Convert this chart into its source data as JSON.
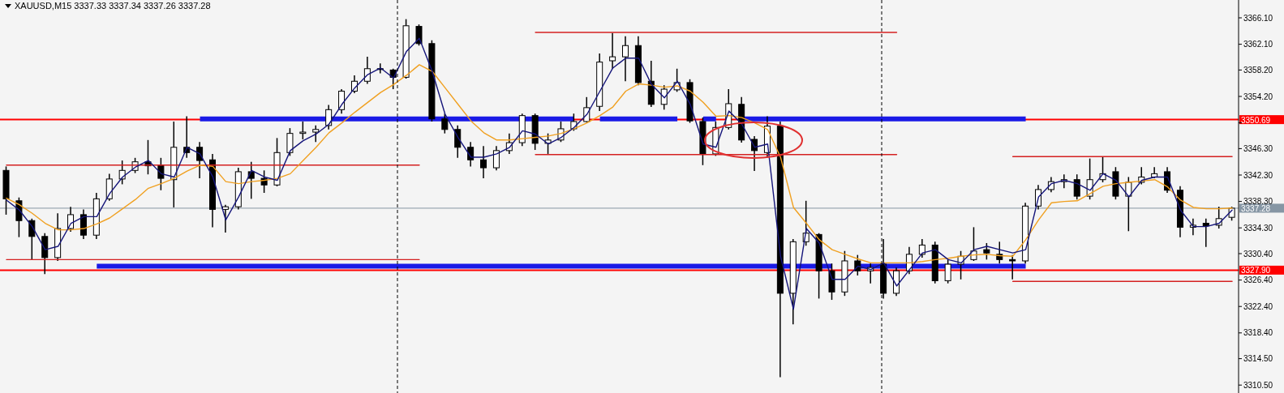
{
  "chart_data": {
    "type": "candlestick",
    "title": "XAUUSD,M15  3337.33 3337.34 3337.26 3337.28",
    "marker": "none",
    "color": "#000000",
    "categories": [
      null,
      null,
      null,
      null,
      null,
      null,
      null,
      null,
      null,
      null,
      null,
      null,
      null,
      null,
      null,
      null,
      null,
      null,
      null,
      null,
      null,
      null,
      null,
      null,
      null,
      null,
      null,
      null,
      null,
      null,
      null,
      null,
      null,
      null,
      null,
      null,
      null,
      null,
      null,
      null,
      null,
      null,
      null,
      null,
      null,
      null,
      null,
      null,
      null,
      null,
      null,
      null,
      null,
      null,
      null,
      null,
      null,
      null,
      null,
      null,
      null,
      null,
      null,
      null,
      null,
      null,
      null,
      null,
      null,
      null,
      null,
      null,
      null,
      null,
      null,
      null,
      null,
      null,
      null,
      null,
      null,
      null,
      null,
      null,
      null,
      null,
      null,
      null,
      null,
      null,
      null,
      null,
      null,
      null,
      null,
      null
    ],
    "ohlc": [
      [
        3343.0,
        3343.6,
        3336.3,
        3338.7
      ],
      [
        3338.4,
        3338.9,
        3332.9,
        3335.4
      ],
      [
        3335.4,
        3335.7,
        3329.5,
        3333.0
      ],
      [
        3333.0,
        3333.5,
        3327.3,
        3329.8
      ],
      [
        3329.8,
        3336.5,
        3329.3,
        3334.2
      ],
      [
        3334.2,
        3337.5,
        3333.7,
        3336.3
      ],
      [
        3336.3,
        3337.1,
        3332.6,
        3333.2
      ],
      [
        3333.2,
        3339.6,
        3332.6,
        3338.7
      ],
      [
        3338.7,
        3342.5,
        3338.4,
        3341.7
      ],
      [
        3341.7,
        3344.5,
        3340.9,
        3343.0
      ],
      [
        3343.0,
        3344.9,
        3342.6,
        3344.3
      ],
      [
        3344.3,
        3347.6,
        3342.4,
        3343.7
      ],
      [
        3343.7,
        3344.9,
        3340.0,
        3341.8
      ],
      [
        3341.6,
        3350.4,
        3337.4,
        3346.5
      ],
      [
        3346.5,
        3351.2,
        3344.9,
        3345.7
      ],
      [
        3346.5,
        3347.3,
        3341.8,
        3344.5
      ],
      [
        3344.6,
        3345.5,
        3334.4,
        3337.1
      ],
      [
        3337.1,
        3337.8,
        3333.6,
        3337.5
      ],
      [
        3337.5,
        3343.4,
        3337.1,
        3342.8
      ],
      [
        3342.8,
        3344.3,
        3338.7,
        3341.8
      ],
      [
        3341.8,
        3343.0,
        3339.6,
        3340.8
      ],
      [
        3340.8,
        3347.9,
        3340.6,
        3345.7
      ],
      [
        3345.7,
        3349.4,
        3345.2,
        3348.6
      ],
      [
        3348.6,
        3350.4,
        3347.7,
        3348.8
      ],
      [
        3348.8,
        3349.8,
        3347.3,
        3349.2
      ],
      [
        3349.8,
        3352.9,
        3349.2,
        3352.2
      ],
      [
        3352.2,
        3355.3,
        3351.6,
        3355.0
      ],
      [
        3355.0,
        3357.4,
        3354.7,
        3356.5
      ],
      [
        3356.5,
        3360.2,
        3356.1,
        3358.4
      ],
      [
        3358.4,
        3359.2,
        3357.7,
        3358.3
      ],
      [
        3358.2,
        3358.4,
        3355.3,
        3357.1
      ],
      [
        3357.1,
        3365.9,
        3356.9,
        3364.9
      ],
      [
        3364.8,
        3365.1,
        3361.9,
        3362.2
      ],
      [
        3362.2,
        3362.7,
        3350.4,
        3350.8
      ],
      [
        3350.8,
        3351.6,
        3348.6,
        3349.2
      ],
      [
        3349.2,
        3349.8,
        3344.9,
        3346.5
      ],
      [
        3346.5,
        3347.3,
        3343.6,
        3344.6
      ],
      [
        3344.6,
        3346.7,
        3341.8,
        3343.4
      ],
      [
        3343.4,
        3346.7,
        3343.0,
        3346.0
      ],
      [
        3346.0,
        3348.6,
        3345.5,
        3347.2
      ],
      [
        3347.2,
        3351.6,
        3346.7,
        3351.3
      ],
      [
        3351.3,
        3351.6,
        3346.1,
        3347.1
      ],
      [
        3347.1,
        3348.6,
        3345.5,
        3347.6
      ],
      [
        3347.6,
        3350.4,
        3347.3,
        3349.3
      ],
      [
        3349.3,
        3351.6,
        3349.0,
        3350.4
      ],
      [
        3350.4,
        3354.1,
        3350.3,
        3352.5
      ],
      [
        3352.7,
        3360.7,
        3352.0,
        3359.4
      ],
      [
        3359.6,
        3363.8,
        3358.4,
        3360.2
      ],
      [
        3360.2,
        3363.3,
        3356.5,
        3361.9
      ],
      [
        3361.9,
        3363.3,
        3355.9,
        3356.3
      ],
      [
        3356.5,
        3359.6,
        3352.6,
        3353.0
      ],
      [
        3353.0,
        3355.9,
        3352.2,
        3355.3
      ],
      [
        3355.2,
        3358.4,
        3354.9,
        3356.3
      ],
      [
        3356.3,
        3356.8,
        3350.2,
        3350.5
      ],
      [
        3350.4,
        3351.0,
        3343.8,
        3345.5
      ],
      [
        3345.5,
        3350.4,
        3345.2,
        3349.5
      ],
      [
        3349.5,
        3355.3,
        3349.2,
        3353.1
      ],
      [
        3353.0,
        3354.1,
        3347.2,
        3347.6
      ],
      [
        3347.7,
        3348.2,
        3342.9,
        3346.0
      ],
      [
        3345.7,
        3351.2,
        3344.9,
        3349.7
      ],
      [
        3349.7,
        3350.4,
        3311.7,
        3324.4
      ],
      [
        3324.4,
        3332.6,
        3319.7,
        3332.2
      ],
      [
        3332.2,
        3338.4,
        3331.6,
        3333.5
      ],
      [
        3333.3,
        3333.5,
        3323.6,
        3327.8
      ],
      [
        3327.8,
        3328.9,
        3323.4,
        3324.6
      ],
      [
        3324.6,
        3330.8,
        3324.0,
        3329.3
      ],
      [
        3329.3,
        3330.2,
        3327.1,
        3327.8
      ],
      [
        3327.8,
        3328.9,
        3325.9,
        3328.3
      ],
      [
        3328.8,
        3332.6,
        3323.6,
        3324.4
      ],
      [
        3324.4,
        3328.3,
        3324.0,
        3327.8
      ],
      [
        3327.8,
        3331.4,
        3327.3,
        3330.3
      ],
      [
        3330.3,
        3332.6,
        3329.8,
        3331.7
      ],
      [
        3331.7,
        3332.2,
        3325.9,
        3326.3
      ],
      [
        3326.3,
        3329.5,
        3325.9,
        3328.8
      ],
      [
        3328.8,
        3330.8,
        3326.5,
        3330.0
      ],
      [
        3329.5,
        3334.4,
        3329.3,
        3330.8
      ],
      [
        3331.0,
        3332.0,
        3329.5,
        3330.5
      ],
      [
        3330.3,
        3332.2,
        3328.9,
        3329.5
      ],
      [
        3329.5,
        3330.2,
        3326.5,
        3329.3
      ],
      [
        3329.3,
        3338.1,
        3328.9,
        3337.6
      ],
      [
        3337.6,
        3340.8,
        3337.1,
        3340.1
      ],
      [
        3340.1,
        3342.0,
        3339.7,
        3341.3
      ],
      [
        3341.3,
        3342.4,
        3340.3,
        3341.6
      ],
      [
        3341.6,
        3342.4,
        3338.6,
        3339.1
      ],
      [
        3339.1,
        3344.8,
        3338.6,
        3341.6
      ],
      [
        3341.6,
        3345.0,
        3341.2,
        3342.5
      ],
      [
        3342.8,
        3343.5,
        3338.6,
        3339.1
      ],
      [
        3339.1,
        3342.0,
        3333.8,
        3341.2
      ],
      [
        3341.2,
        3343.5,
        3340.9,
        3342.0
      ],
      [
        3342.0,
        3343.5,
        3341.8,
        3342.5
      ],
      [
        3342.8,
        3343.5,
        3339.6,
        3340.0
      ],
      [
        3340.0,
        3340.6,
        3332.9,
        3334.4
      ],
      [
        3334.4,
        3335.7,
        3333.2,
        3334.7
      ],
      [
        3335.0,
        3335.7,
        3331.4,
        3334.6
      ],
      [
        3334.7,
        3337.5,
        3334.2,
        3335.7
      ],
      [
        3335.9,
        3337.5,
        3335.4,
        3337.28
      ]
    ],
    "series": [
      {
        "type": "step",
        "color": "#1a1ae6",
        "values": [
          null,
          null,
          null,
          null,
          null,
          null,
          null,
          3328.5,
          3328.5,
          3328.5,
          3328.5,
          3328.5,
          3328.5,
          3328.5,
          3328.5,
          3328.5,
          3328.5,
          3328.5,
          3328.5,
          3328.5,
          3328.5,
          3328.5,
          3328.5,
          3328.5,
          3328.5,
          3328.5,
          3328.5,
          3328.5,
          3328.5,
          3328.5,
          3328.5,
          3328.5,
          3328.5,
          3328.5,
          3328.5,
          3328.5,
          3328.5,
          3328.5,
          3328.5,
          3328.5,
          3328.5,
          3328.5,
          3328.5,
          3328.5,
          3328.5,
          3328.5,
          3328.5,
          3328.5,
          3328.5,
          3328.5,
          3328.5,
          3328.5,
          3328.5,
          3328.5,
          3328.5,
          3328.5,
          3328.5,
          3328.5,
          3328.5,
          3328.5,
          3328.5,
          3328.5,
          3328.5,
          3328.5,
          3328.5,
          null,
          3328.5,
          3328.5,
          3328.5,
          3328.5,
          3328.5,
          3328.5,
          3328.5,
          3328.5,
          3328.5,
          3328.5,
          3328.5,
          3328.5,
          3328.5,
          3328.5,
          null,
          null,
          null,
          null,
          null,
          null,
          null,
          null,
          null,
          null,
          null,
          null,
          null,
          null,
          null,
          null
        ]
      },
      {
        "type": "step",
        "color": "#1a1ae6",
        "values": [
          null,
          null,
          null,
          null,
          null,
          null,
          null,
          null,
          null,
          null,
          null,
          null,
          null,
          null,
          null,
          3350.8,
          3350.8,
          3350.8,
          3350.8,
          3350.8,
          3350.8,
          3350.8,
          3350.8,
          3350.8,
          3350.8,
          3350.8,
          3350.8,
          3350.8,
          3350.8,
          3350.8,
          3350.8,
          3350.8,
          3350.8,
          3350.8,
          3350.8,
          3350.8,
          3350.8,
          3350.8,
          3350.8,
          3350.8,
          3350.8,
          3350.8,
          3350.8,
          3350.8,
          3350.8,
          null,
          3350.8,
          3350.8,
          3350.8,
          3350.8,
          3350.8,
          3350.8,
          3350.8,
          null,
          3350.8,
          3350.8,
          null,
          3350.8,
          3350.8,
          3350.8,
          3350.8,
          3350.8,
          3350.8,
          3350.8,
          3350.8,
          3350.8,
          3350.8,
          3350.8,
          3350.8,
          3350.8,
          3350.8,
          3350.8,
          3350.8,
          3350.8,
          3350.8,
          3350.8,
          3350.8,
          3350.8,
          3350.8,
          3350.8,
          null,
          null,
          null,
          null,
          null,
          null,
          null,
          null,
          null,
          null,
          null,
          null,
          null,
          null,
          null,
          null
        ]
      },
      {
        "type": "line",
        "color": "#d42020",
        "values": [
          3343.8,
          3343.8,
          3343.8,
          3343.8,
          3343.8,
          3343.8,
          3343.8,
          3343.8,
          3343.8,
          3343.8,
          3343.8,
          3343.8,
          3343.8,
          3343.8,
          3343.8,
          3343.8,
          3343.8,
          3343.8,
          3343.8,
          3343.8,
          3343.8,
          3343.8,
          3343.8,
          3343.8,
          3343.8,
          3343.8,
          3343.8,
          3343.8,
          3343.8,
          3343.8,
          3343.8,
          3343.8,
          3343.8,
          null,
          null,
          null,
          null,
          null,
          null,
          null,
          null,
          null,
          null,
          null,
          null,
          null,
          null,
          null,
          null,
          null,
          null,
          null,
          null,
          null,
          null,
          null,
          null,
          null,
          null,
          null,
          null,
          null,
          null,
          null,
          null,
          null,
          null,
          null,
          null,
          null,
          null,
          null,
          null,
          null,
          null,
          null,
          null,
          null,
          null,
          null,
          null,
          null,
          null,
          null,
          null,
          null,
          null,
          null,
          null,
          null,
          null,
          null,
          null,
          null,
          null,
          null
        ]
      },
      {
        "type": "line",
        "color": "#d42020",
        "values": [
          3329.5,
          3329.5,
          3329.5,
          3329.5,
          3329.5,
          3329.5,
          3329.5,
          3329.5,
          3329.5,
          3329.5,
          3329.5,
          3329.5,
          3329.5,
          3329.5,
          3329.5,
          3329.5,
          3329.5,
          3329.5,
          3329.5,
          3329.5,
          3329.5,
          3329.5,
          3329.5,
          3329.5,
          3329.5,
          3329.5,
          3329.5,
          3329.5,
          3329.5,
          3329.5,
          3329.5,
          3329.5,
          3329.5,
          null,
          null,
          null,
          null,
          null,
          null,
          null,
          null,
          null,
          null,
          null,
          null,
          null,
          null,
          null,
          null,
          null,
          null,
          null,
          null,
          null,
          null,
          null,
          null,
          null,
          null,
          null,
          null,
          null,
          null,
          null,
          null,
          null,
          null,
          null,
          null,
          null,
          null,
          null,
          null,
          null,
          null,
          null,
          null,
          null,
          null,
          null,
          null,
          null,
          null,
          null,
          null,
          null,
          null,
          null,
          null,
          null,
          null,
          null,
          null,
          null,
          null,
          null
        ]
      },
      {
        "type": "line",
        "color": "#d42020",
        "values": [
          null,
          null,
          null,
          null,
          null,
          null,
          null,
          null,
          null,
          null,
          null,
          null,
          null,
          null,
          null,
          null,
          null,
          null,
          null,
          null,
          null,
          null,
          null,
          null,
          null,
          null,
          null,
          null,
          null,
          null,
          null,
          null,
          null,
          null,
          null,
          null,
          null,
          null,
          null,
          null,
          null,
          3363.9,
          3363.9,
          3363.9,
          3363.9,
          3363.9,
          3363.9,
          3363.9,
          3363.9,
          3363.9,
          3363.9,
          3363.9,
          3363.9,
          3363.9,
          3363.9,
          3363.9,
          3363.9,
          3363.9,
          3363.9,
          3363.9,
          3363.9,
          3363.9,
          3363.9,
          3363.9,
          3363.9,
          3363.9,
          3363.9,
          3363.9,
          3363.9,
          3363.9,
          null,
          null,
          null,
          null,
          null,
          null,
          null,
          null,
          null,
          null,
          null,
          null,
          null,
          null,
          null,
          null,
          null,
          null,
          null,
          null,
          null,
          null,
          null,
          null,
          null,
          null
        ]
      },
      {
        "type": "line",
        "color": "#d42020",
        "values": [
          null,
          null,
          null,
          null,
          null,
          null,
          null,
          null,
          null,
          null,
          null,
          null,
          null,
          null,
          null,
          null,
          null,
          null,
          null,
          null,
          null,
          null,
          null,
          null,
          null,
          null,
          null,
          null,
          null,
          null,
          null,
          null,
          null,
          null,
          null,
          null,
          null,
          null,
          null,
          null,
          null,
          3345.4,
          3345.4,
          3345.4,
          3345.4,
          3345.4,
          3345.4,
          3345.4,
          3345.4,
          3345.4,
          3345.4,
          3345.4,
          3345.4,
          3345.4,
          3345.4,
          3345.4,
          3345.4,
          3345.4,
          3345.4,
          3345.4,
          3345.4,
          3345.4,
          3345.4,
          3345.4,
          3345.4,
          3345.4,
          3345.4,
          3345.4,
          3345.4,
          3345.4,
          null,
          null,
          null,
          null,
          null,
          null,
          null,
          null,
          null,
          null,
          null,
          null,
          null,
          null,
          null,
          null,
          null,
          null,
          null,
          null,
          null,
          null,
          null,
          null,
          null,
          null
        ]
      },
      {
        "type": "line",
        "color": "#d42020",
        "values": [
          null,
          null,
          null,
          null,
          null,
          null,
          null,
          null,
          null,
          null,
          null,
          null,
          null,
          null,
          null,
          null,
          null,
          null,
          null,
          null,
          null,
          null,
          null,
          null,
          null,
          null,
          null,
          null,
          null,
          null,
          null,
          null,
          null,
          null,
          null,
          null,
          null,
          null,
          null,
          null,
          null,
          null,
          null,
          null,
          null,
          null,
          null,
          null,
          null,
          null,
          null,
          null,
          null,
          null,
          null,
          null,
          null,
          null,
          null,
          null,
          null,
          null,
          null,
          null,
          null,
          null,
          null,
          null,
          null,
          null,
          null,
          null,
          null,
          null,
          null,
          null,
          null,
          null,
          3345.1,
          3345.1,
          3345.1,
          3345.1,
          3345.1,
          3345.1,
          3345.1,
          3345.1,
          3345.1,
          3345.1,
          3345.1,
          3345.1,
          3345.1,
          3345.1,
          3345.1,
          3345.1,
          3345.1,
          3345.1
        ]
      },
      {
        "type": "line",
        "color": "#d42020",
        "values": [
          null,
          null,
          null,
          null,
          null,
          null,
          null,
          null,
          null,
          null,
          null,
          null,
          null,
          null,
          null,
          null,
          null,
          null,
          null,
          null,
          null,
          null,
          null,
          null,
          null,
          null,
          null,
          null,
          null,
          null,
          null,
          null,
          null,
          null,
          null,
          null,
          null,
          null,
          null,
          null,
          null,
          null,
          null,
          null,
          null,
          null,
          null,
          null,
          null,
          null,
          null,
          null,
          null,
          null,
          null,
          null,
          null,
          null,
          null,
          null,
          null,
          null,
          null,
          null,
          null,
          null,
          null,
          null,
          null,
          null,
          null,
          null,
          null,
          null,
          null,
          null,
          null,
          null,
          3326.2,
          3326.2,
          3326.2,
          3326.2,
          3326.2,
          3326.2,
          3326.2,
          3326.2,
          3326.2,
          3326.2,
          3326.2,
          3326.2,
          3326.2,
          3326.2,
          3326.2,
          3326.2,
          3326.2,
          3326.2
        ]
      },
      {
        "type": "line",
        "color": "#f0a020",
        "values": [
          3338.8,
          3337.8,
          3336.5,
          3335,
          3334,
          3334,
          3334.2,
          3334.9,
          3335.8,
          3337.2,
          3338.6,
          3340.3,
          3341,
          3341.8,
          3342.9,
          3343.8,
          3343.6,
          3341.3,
          3341,
          3341.3,
          3341.5,
          3341.8,
          3342.5,
          3344.5,
          3346.5,
          3348.7,
          3350.2,
          3351.8,
          3353.3,
          3354.8,
          3356,
          3357.4,
          3359,
          3358,
          3355.5,
          3353,
          3350.5,
          3348.7,
          3347.6,
          3347.6,
          3347.8,
          3348,
          3348.2,
          3348.6,
          3349.3,
          3350.2,
          3351.3,
          3352.6,
          3355,
          3356.1,
          3355.9,
          3355.6,
          3355.8,
          3355,
          3353.3,
          3351.2,
          3351.3,
          3351,
          3350.2,
          3349.2,
          3345,
          3337.4,
          3335,
          3332.5,
          3331,
          3330.3,
          3329.6,
          3329,
          3329,
          3329,
          3329,
          3329.2,
          3329.5,
          3329.7,
          3330,
          3330.2,
          3330.3,
          3330.1,
          3330,
          3332.5,
          3335.5,
          3338.1,
          3338.3,
          3338.4,
          3339.5,
          3340.6,
          3341,
          3341.2,
          3341.4,
          3341.6,
          3340.5,
          3338.5,
          3337.4,
          3337.2,
          3337.2,
          3337.3
        ]
      },
      {
        "type": "line",
        "color": "#15157a",
        "values": [
          3338.5,
          3337,
          3334.5,
          3331,
          3331.5,
          3335,
          3336,
          3336,
          3339.5,
          3342,
          3343.5,
          3344.5,
          3342.5,
          3342,
          3346.5,
          3345.5,
          3342,
          3335.5,
          3339,
          3343,
          3342,
          3341.5,
          3346,
          3347.5,
          3348.5,
          3350,
          3353,
          3355.5,
          3357.5,
          3358.5,
          3357,
          3361,
          3363,
          3358,
          3351.5,
          3348,
          3345,
          3345,
          3345.5,
          3346.5,
          3349,
          3348.5,
          3347,
          3348,
          3349.5,
          3351.5,
          3355,
          3358.5,
          3360,
          3360,
          3356,
          3354,
          3356.5,
          3353,
          3347,
          3346.5,
          3352,
          3350,
          3346.5,
          3347,
          3330,
          3322,
          3334.2,
          3332,
          3326.5,
          3326.5,
          3328.5,
          3328,
          3329,
          3325.5,
          3328,
          3330.5,
          3331,
          3329.5,
          3329,
          3331,
          3331.5,
          3331,
          3330.5,
          3331,
          3339,
          3341,
          3341.5,
          3341,
          3340,
          3342.5,
          3341.5,
          3339,
          3341.5,
          3342,
          3342,
          3337,
          3334.5,
          3334.5,
          3335,
          3337
        ]
      }
    ],
    "ref_lines": [
      {
        "axis": "y",
        "value": 3350.69,
        "label": "3350.69",
        "color": "#ff0000"
      },
      {
        "axis": "y",
        "value": 3327.9,
        "label": "3327.90",
        "color": "#ff0000"
      },
      {
        "axis": "y",
        "value": 3337.28,
        "label": "3337.28",
        "color": "#8696a4"
      }
    ],
    "ylim": [
      3309.3,
      3368.8
    ],
    "yticks": [
      {
        "value": 3366.1,
        "label": "3366.10"
      },
      {
        "value": 3362.1,
        "label": "3362.10"
      },
      {
        "value": 3358.2,
        "label": "3358.20"
      },
      {
        "value": 3354.2,
        "label": "3354.20"
      },
      {
        "value": 3350.2,
        "label": null
      },
      {
        "value": 3346.3,
        "label": "3346.30"
      },
      {
        "value": 3342.3,
        "label": "3342.30"
      },
      {
        "value": 3338.3,
        "label": "3338.30"
      },
      {
        "value": 3334.3,
        "label": "3334.30"
      },
      {
        "value": 3330.4,
        "label": "3330.40"
      },
      {
        "value": 3326.4,
        "label": "3326.40"
      },
      {
        "value": 3322.4,
        "label": "3322.40"
      },
      {
        "value": 3318.4,
        "label": "3318.40"
      },
      {
        "value": 3314.5,
        "label": "3314.50"
      },
      {
        "value": 3310.5,
        "label": "3310.50"
      }
    ]
  }
}
